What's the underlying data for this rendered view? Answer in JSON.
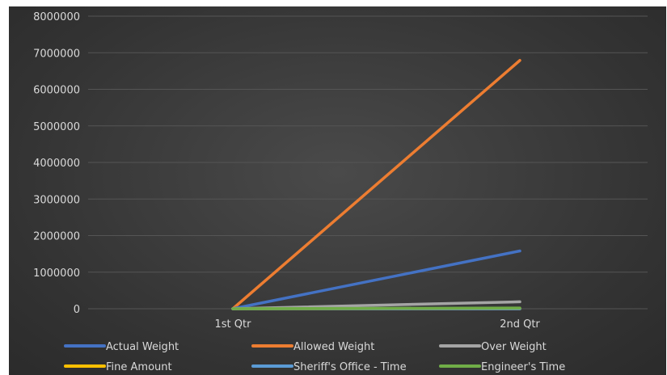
{
  "chart_data": {
    "type": "line",
    "title": "",
    "xlabel": "",
    "ylabel": "",
    "categories": [
      "1st Qtr",
      "2nd Qtr"
    ],
    "ylim": [
      0,
      8000000
    ],
    "yticks": [
      0,
      1000000,
      2000000,
      3000000,
      4000000,
      5000000,
      6000000,
      7000000,
      8000000
    ],
    "grid": "horizontal",
    "legend_position": "bottom",
    "series": [
      {
        "name": "Actual Weight",
        "values": [
          0,
          1580000
        ],
        "color": "#4472c4"
      },
      {
        "name": "Allowed Weight",
        "values": [
          0,
          6790000
        ],
        "color": "#ed7d31"
      },
      {
        "name": "Over Weight",
        "values": [
          0,
          190000
        ],
        "color": "#a5a5a5"
      },
      {
        "name": "Fine Amount",
        "values": [
          0,
          1000
        ],
        "color": "#ffc000"
      },
      {
        "name": "Sheriff's Office - Time",
        "values": [
          0,
          100
        ],
        "color": "#5b9bd5"
      },
      {
        "name": "Engineer's Time",
        "values": [
          0,
          20000
        ],
        "color": "#70ad47"
      }
    ]
  }
}
